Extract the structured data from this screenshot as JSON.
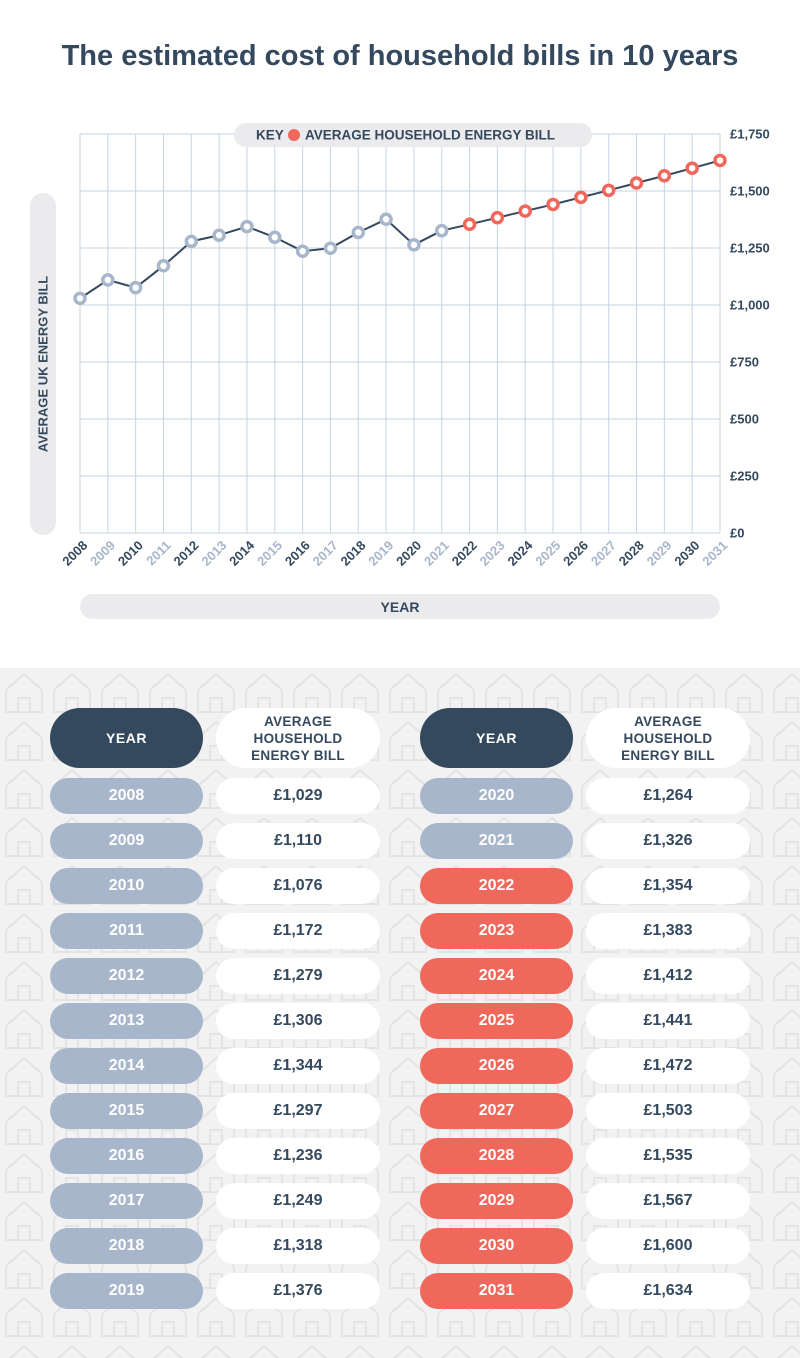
{
  "title": "The estimated cost of household bills in 10 years",
  "chart_data": {
    "type": "line",
    "title": "The estimated cost of household bills in 10 years",
    "key_prefix": "KEY",
    "legend": "AVERAGE HOUSEHOLD ENERGY BILL",
    "xlabel": "YEAR",
    "ylabel": "AVERAGE UK ENERGY BILL",
    "ylim": [
      0,
      1750
    ],
    "yticks": [
      0,
      250,
      500,
      750,
      1000,
      1250,
      1500,
      1750
    ],
    "ytick_labels": [
      "£0",
      "£250",
      "£500",
      "£750",
      "£1,000",
      "£1,250",
      "£1,500",
      "£1,750"
    ],
    "x": [
      2008,
      2009,
      2010,
      2011,
      2012,
      2013,
      2014,
      2015,
      2016,
      2017,
      2018,
      2019,
      2020,
      2021,
      2022,
      2023,
      2024,
      2025,
      2026,
      2027,
      2028,
      2029,
      2030,
      2031
    ],
    "values": [
      1029,
      1110,
      1076,
      1172,
      1279,
      1306,
      1344,
      1297,
      1236,
      1249,
      1318,
      1376,
      1264,
      1326,
      1354,
      1383,
      1412,
      1441,
      1472,
      1503,
      1535,
      1567,
      1600,
      1634
    ],
    "projection_start": 2022,
    "colors": {
      "historic": "#a7b6cb",
      "projected": "#f0685b",
      "line": "#34495e",
      "grid": "#c5d3e1",
      "pill": "#ebebed"
    }
  },
  "table": {
    "year_header": "YEAR",
    "bill_header": "AVERAGE HOUSEHOLD ENERGY BILL",
    "left_rows": [
      {
        "year": "2008",
        "bill": "£1,029"
      },
      {
        "year": "2009",
        "bill": "£1,110"
      },
      {
        "year": "2010",
        "bill": "£1,076"
      },
      {
        "year": "2011",
        "bill": "£1,172"
      },
      {
        "year": "2012",
        "bill": "£1,279"
      },
      {
        "year": "2013",
        "bill": "£1,306"
      },
      {
        "year": "2014",
        "bill": "£1,344"
      },
      {
        "year": "2015",
        "bill": "£1,297"
      },
      {
        "year": "2016",
        "bill": "£1,236"
      },
      {
        "year": "2017",
        "bill": "£1,249"
      },
      {
        "year": "2018",
        "bill": "£1,318"
      },
      {
        "year": "2019",
        "bill": "£1,376"
      }
    ],
    "right_rows": [
      {
        "year": "2020",
        "bill": "£1,264"
      },
      {
        "year": "2021",
        "bill": "£1,326"
      },
      {
        "year": "2022",
        "bill": "£1,354"
      },
      {
        "year": "2023",
        "bill": "£1,383"
      },
      {
        "year": "2024",
        "bill": "£1,412"
      },
      {
        "year": "2025",
        "bill": "£1,441"
      },
      {
        "year": "2026",
        "bill": "£1,472"
      },
      {
        "year": "2027",
        "bill": "£1,503"
      },
      {
        "year": "2028",
        "bill": "£1,535"
      },
      {
        "year": "2029",
        "bill": "£1,567"
      },
      {
        "year": "2030",
        "bill": "£1,600"
      },
      {
        "year": "2031",
        "bill": "£1,634"
      }
    ]
  }
}
